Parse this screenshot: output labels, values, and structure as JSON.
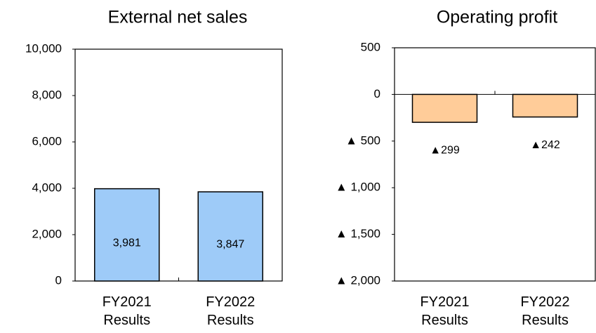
{
  "chart_data": [
    {
      "type": "bar",
      "title": "External net sales",
      "categories": [
        "FY2021 Results",
        "FY2022 Results"
      ],
      "values": [
        3981,
        3847
      ],
      "value_labels": [
        "3,981",
        "3,847"
      ],
      "color": "#9ecbf8",
      "ylim": [
        0,
        10000
      ],
      "yticks": [
        0,
        {
          "value": 2000,
          "label": "2,000"
        },
        {
          "value": 4000,
          "label": "4,000"
        },
        {
          "value": 6000,
          "label": "6,000"
        },
        {
          "value": 8000,
          "label": "8,000"
        },
        {
          "value": 10000,
          "label": "10,000"
        }
      ]
    },
    {
      "type": "bar",
      "title": "Operating profit",
      "categories": [
        "FY2021 Results",
        "FY2022 Results"
      ],
      "values": [
        -299,
        -242
      ],
      "value_labels": [
        "▲299",
        "▲242"
      ],
      "color": "#ffcc99",
      "ylim": [
        -2000,
        500
      ],
      "yticks": [
        {
          "value": -2000,
          "label": "▲ 2,000"
        },
        {
          "value": -1500,
          "label": "▲ 1,500"
        },
        {
          "value": -1000,
          "label": "▲ 1,000"
        },
        {
          "value": -500,
          "label": "▲ 500"
        },
        0,
        500
      ]
    }
  ]
}
